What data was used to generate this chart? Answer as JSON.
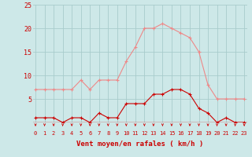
{
  "hours": [
    0,
    1,
    2,
    3,
    4,
    5,
    6,
    7,
    8,
    9,
    10,
    11,
    12,
    13,
    14,
    15,
    16,
    17,
    18,
    19,
    20,
    21,
    22,
    23
  ],
  "wind_avg": [
    1,
    1,
    1,
    0,
    1,
    1,
    0,
    2,
    1,
    1,
    4,
    4,
    4,
    6,
    6,
    7,
    7,
    6,
    3,
    2,
    0,
    1,
    0,
    0
  ],
  "wind_gust": [
    7,
    7,
    7,
    7,
    7,
    9,
    7,
    9,
    9,
    9,
    13,
    16,
    20,
    20,
    21,
    20,
    19,
    18,
    15,
    8,
    5,
    5,
    5,
    5
  ],
  "bg_color": "#cde8e8",
  "grid_color": "#a8cccc",
  "avg_color": "#cc0000",
  "gust_color": "#ee8888",
  "tick_color": "#cc0000",
  "xlabel": "Vent moyen/en rafales ( km/h )",
  "ylim_min": -1,
  "ylim_max": 25,
  "line_color": "#cc0000"
}
